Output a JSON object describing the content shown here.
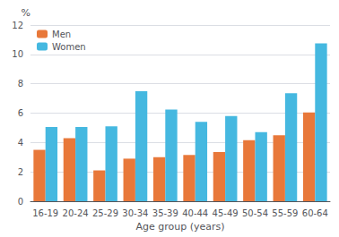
{
  "chart_data": {
    "type": "bar",
    "categories": [
      "16-19",
      "20-24",
      "25-29",
      "30-34",
      "35-39",
      "40-44",
      "45-49",
      "50-54",
      "55-59",
      "60-64"
    ],
    "series": [
      {
        "name": "Men",
        "color": "#E8783A",
        "values": [
          3.5,
          4.3,
          2.1,
          2.9,
          3.0,
          3.15,
          3.35,
          4.15,
          4.5,
          6.05
        ]
      },
      {
        "name": "Women",
        "color": "#45B8E0",
        "values": [
          5.05,
          5.05,
          5.1,
          7.5,
          6.25,
          5.4,
          5.8,
          4.7,
          7.35,
          10.75
        ]
      }
    ],
    "xlabel": "Age group (years)",
    "ylabel": "%",
    "ylim": [
      0,
      12
    ],
    "yticks": [
      0,
      2,
      4,
      6,
      8,
      10,
      12
    ],
    "grid": true,
    "legend": "upper left"
  }
}
